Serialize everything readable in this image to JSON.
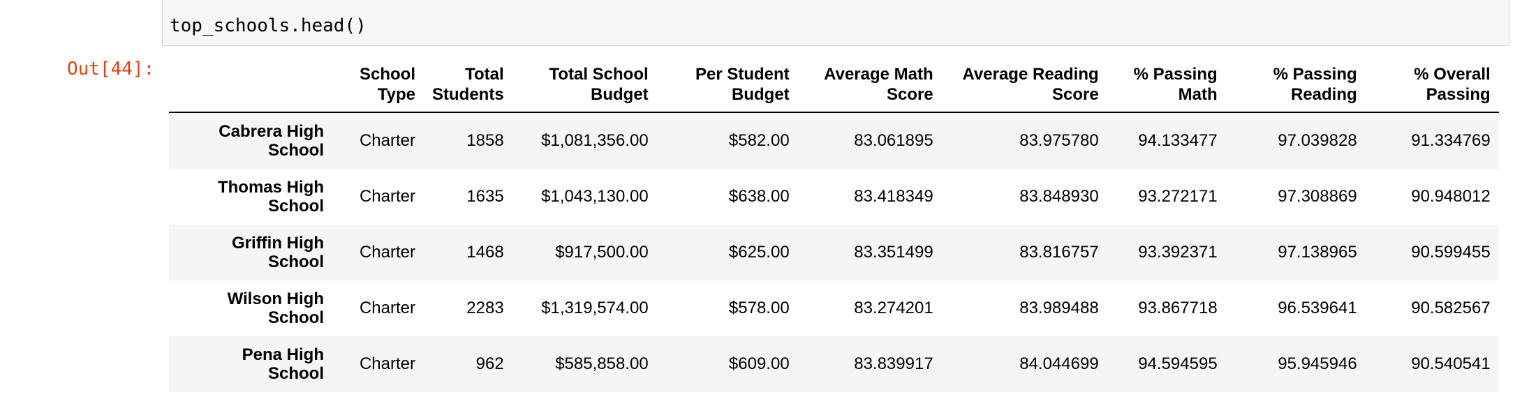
{
  "input": {
    "code": "top_schools.head()"
  },
  "output": {
    "prompt": "Out[44]:"
  },
  "table": {
    "columns": [
      {
        "line1": "School",
        "line2": "Type"
      },
      {
        "line1": "Total",
        "line2": "Students"
      },
      {
        "line1": "Total School",
        "line2": "Budget"
      },
      {
        "line1": "Per Student",
        "line2": "Budget"
      },
      {
        "line1": "Average Math",
        "line2": "Score"
      },
      {
        "line1": "Average Reading",
        "line2": "Score"
      },
      {
        "line1": "% Passing",
        "line2": "Math"
      },
      {
        "line1": "% Passing",
        "line2": "Reading"
      },
      {
        "line1": "% Overall",
        "line2": "Passing"
      }
    ],
    "rows": [
      {
        "name1": "Cabrera High",
        "name2": "School",
        "type": "Charter",
        "students": "1858",
        "budget": "$1,081,356.00",
        "per_student": "$582.00",
        "avg_math": "83.061895",
        "avg_reading": "83.975780",
        "pct_math": "94.133477",
        "pct_reading": "97.039828",
        "pct_overall": "91.334769"
      },
      {
        "name1": "Thomas High",
        "name2": "School",
        "type": "Charter",
        "students": "1635",
        "budget": "$1,043,130.00",
        "per_student": "$638.00",
        "avg_math": "83.418349",
        "avg_reading": "83.848930",
        "pct_math": "93.272171",
        "pct_reading": "97.308869",
        "pct_overall": "90.948012"
      },
      {
        "name1": "Griffin High",
        "name2": "School",
        "type": "Charter",
        "students": "1468",
        "budget": "$917,500.00",
        "per_student": "$625.00",
        "avg_math": "83.351499",
        "avg_reading": "83.816757",
        "pct_math": "93.392371",
        "pct_reading": "97.138965",
        "pct_overall": "90.599455"
      },
      {
        "name1": "Wilson High",
        "name2": "School",
        "type": "Charter",
        "students": "2283",
        "budget": "$1,319,574.00",
        "per_student": "$578.00",
        "avg_math": "83.274201",
        "avg_reading": "83.989488",
        "pct_math": "93.867718",
        "pct_reading": "96.539641",
        "pct_overall": "90.582567"
      },
      {
        "name1": "Pena High",
        "name2": "School",
        "type": "Charter",
        "students": "962",
        "budget": "$585,858.00",
        "per_student": "$609.00",
        "avg_math": "83.839917",
        "avg_reading": "84.044699",
        "pct_math": "94.594595",
        "pct_reading": "95.945946",
        "pct_overall": "90.540541"
      }
    ]
  }
}
